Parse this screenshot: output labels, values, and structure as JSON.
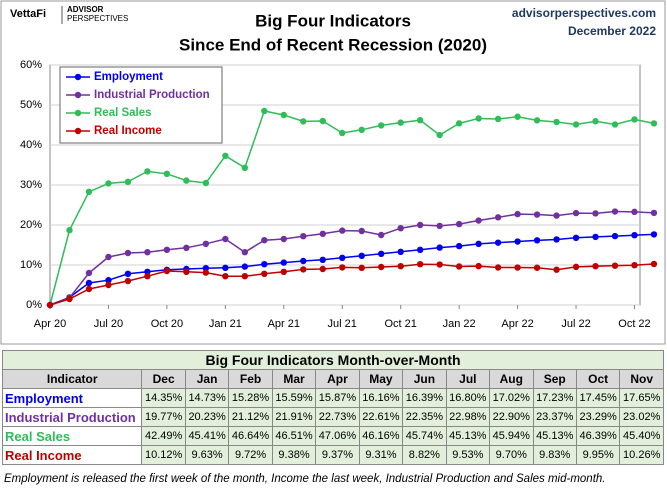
{
  "header": {
    "brand": "VettaFi",
    "brand_line1": "ADVISOR",
    "brand_line2": "PERSPECTIVES",
    "site": "advisorperspectives.com",
    "date": "December 2022"
  },
  "chart_data": {
    "type": "line",
    "title": "Big Four Indicators",
    "subtitle": "Since  End of Recent Recession (2020)",
    "categories": [
      "Apr 20",
      null,
      null,
      "Jul 20",
      null,
      null,
      "Oct 20",
      null,
      null,
      "Jan 21",
      null,
      null,
      "Apr 21",
      null,
      null,
      "Jul 21",
      null,
      null,
      "Oct 21",
      null,
      null,
      "Jan 22",
      null,
      null,
      "Apr 22",
      null,
      null,
      "Jul 22",
      null,
      null,
      "Oct 22",
      null
    ],
    "series": [
      {
        "name": "Employment",
        "color": "#0000ee",
        "values": [
          0,
          1.9,
          5.5,
          6.2,
          7.8,
          8.3,
          8.8,
          9.0,
          9.2,
          9.3,
          9.6,
          10.2,
          10.6,
          11.0,
          11.3,
          11.8,
          12.3,
          12.8,
          13.3,
          13.8,
          14.35,
          14.73,
          15.28,
          15.59,
          15.87,
          16.16,
          16.39,
          16.8,
          17.02,
          17.23,
          17.45,
          17.65
        ]
      },
      {
        "name": "Industrial Production",
        "color": "#7030a0",
        "values": [
          0,
          1.8,
          8.0,
          12.0,
          13.0,
          13.2,
          13.8,
          14.3,
          15.3,
          16.5,
          13.2,
          16.2,
          16.5,
          17.2,
          17.8,
          18.6,
          18.5,
          17.5,
          19.2,
          20.0,
          19.77,
          20.23,
          21.12,
          21.91,
          22.73,
          22.61,
          22.35,
          22.98,
          22.9,
          23.37,
          23.29,
          23.02
        ]
      },
      {
        "name": "Real Sales",
        "color": "#2ebd59",
        "values": [
          0,
          18.7,
          28.3,
          30.4,
          30.8,
          33.4,
          32.8,
          31.1,
          30.5,
          37.3,
          34.3,
          48.5,
          47.5,
          45.9,
          46.0,
          43.0,
          43.8,
          44.9,
          45.6,
          46.2,
          42.49,
          45.41,
          46.64,
          46.51,
          47.06,
          46.16,
          45.74,
          45.13,
          45.94,
          45.13,
          46.39,
          45.4
        ]
      },
      {
        "name": "Real Income",
        "color": "#c00000",
        "values": [
          0,
          1.5,
          4.0,
          5.0,
          6.0,
          7.2,
          8.5,
          8.3,
          8.1,
          7.2,
          7.2,
          7.8,
          8.3,
          8.9,
          9.0,
          9.4,
          9.3,
          9.5,
          9.7,
          10.2,
          10.12,
          9.63,
          9.72,
          9.38,
          9.37,
          9.31,
          8.82,
          9.53,
          9.7,
          9.83,
          9.95,
          10.26
        ]
      }
    ],
    "ylim": [
      0,
      60
    ],
    "yticks": [
      {
        "value": 0,
        "label": "0%"
      },
      {
        "value": 10,
        "label": "10%"
      },
      {
        "value": 20,
        "label": "20%"
      },
      {
        "value": 30,
        "label": "30%"
      },
      {
        "value": 40,
        "label": "40%"
      },
      {
        "value": 50,
        "label": "50%"
      },
      {
        "value": 60,
        "label": "60%"
      }
    ],
    "grid": true,
    "legend": "upper left"
  },
  "table": {
    "title": "Big Four Indicators Month-over-Month",
    "columns": [
      "Indicator",
      "Dec",
      "Jan",
      "Feb",
      "Mar",
      "Apr",
      "May",
      "Jun",
      "Jul",
      "Aug",
      "Sep",
      "Oct",
      "Nov"
    ],
    "rows": [
      [
        "Employment",
        "14.35%",
        "14.73%",
        "15.28%",
        "15.59%",
        "15.87%",
        "16.16%",
        "16.39%",
        "16.80%",
        "17.02%",
        "17.23%",
        "17.45%",
        "17.65%"
      ],
      [
        "Industrial Production",
        "19.77%",
        "20.23%",
        "21.12%",
        "21.91%",
        "22.73%",
        "22.61%",
        "22.35%",
        "22.98%",
        "22.90%",
        "23.37%",
        "23.29%",
        "23.02%"
      ],
      [
        "Real Sales",
        "42.49%",
        "45.41%",
        "46.64%",
        "46.51%",
        "47.06%",
        "46.16%",
        "45.74%",
        "45.13%",
        "45.94%",
        "45.13%",
        "46.39%",
        "45.40%"
      ],
      [
        "Real Income",
        "10.12%",
        "9.63%",
        "9.72%",
        "9.38%",
        "9.37%",
        "9.31%",
        "8.82%",
        "9.53%",
        "9.70%",
        "9.83%",
        "9.95%",
        "10.26%"
      ]
    ]
  },
  "footnote": "Employment is released the first week of the month, Income the last week, Industrial Production and Sales mid-month."
}
